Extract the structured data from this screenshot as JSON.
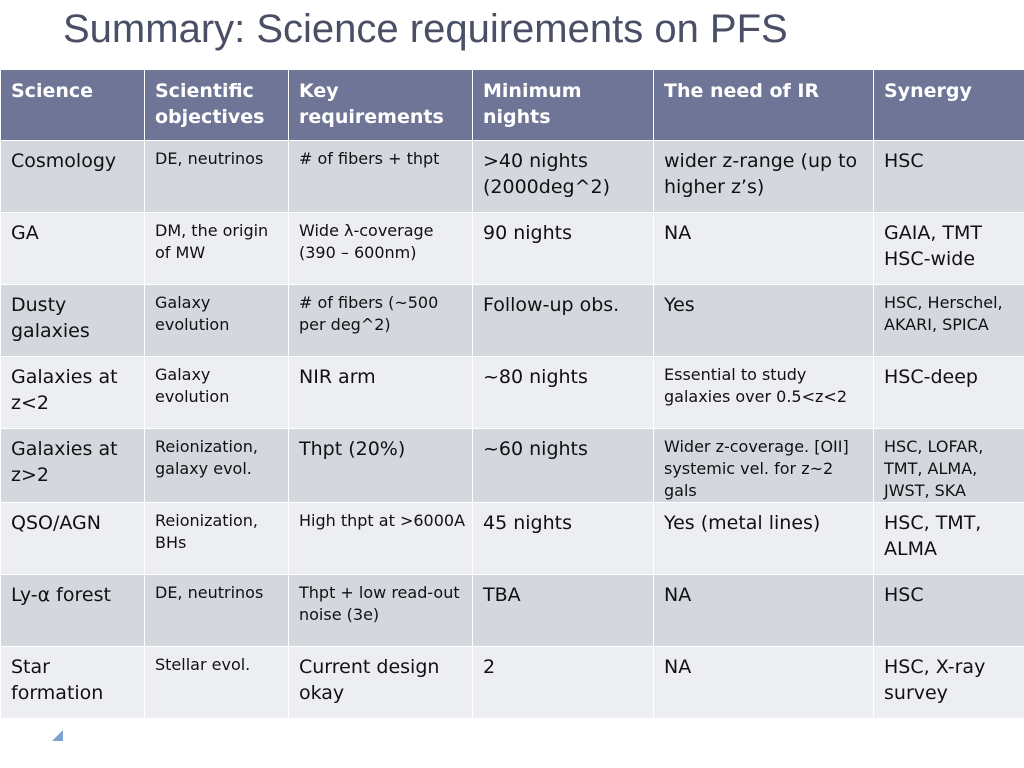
{
  "title": "Summary: Science requirements on PFS",
  "table": {
    "headers": [
      "Science",
      "Scientific objectives",
      "Key requirements",
      "Minimum nights",
      "The need of IR",
      "Synergy"
    ],
    "rows": [
      [
        "Cosmology",
        "DE, neutrinos",
        "# of fibers + thpt",
        ">40 nights (2000deg^2)",
        "wider z-range (up to higher z’s)",
        "HSC"
      ],
      [
        "GA",
        "DM, the origin of MW",
        "Wide λ-coverage (390 – 600nm)",
        "90 nights",
        "NA",
        "GAIA, TMT HSC-wide"
      ],
      [
        "Dusty galaxies",
        "Galaxy evolution",
        "# of fibers (~500 per deg^2)",
        "Follow-up obs.",
        "Yes",
        "HSC, Herschel, AKARI, SPICA"
      ],
      [
        "Galaxies at z<2",
        "Galaxy evolution",
        "NIR arm",
        "~80 nights",
        "Essential to study galaxies over 0.5<z<2",
        "HSC-deep"
      ],
      [
        "Galaxies at z>2",
        "Reionization, galaxy evol.",
        "Thpt (20%)",
        "~60 nights",
        "Wider z-coverage. [OII] systemic vel. for z~2 gals",
        "HSC, LOFAR, TMT, ALMA, JWST, SKA"
      ],
      [
        "QSO/AGN",
        "Reionization, BHs",
        "High thpt at >6000A",
        "45 nights",
        "Yes (metal lines)",
        "HSC, TMT, ALMA"
      ],
      [
        "Ly-α forest",
        "DE, neutrinos",
        "Thpt + low read-out noise (3e)",
        "TBA",
        "NA",
        "HSC"
      ],
      [
        "Star formation",
        "Stellar evol.",
        "Current design okay",
        "2",
        "NA",
        "HSC, X-ray survey"
      ]
    ]
  },
  "colors": {
    "header_bg": "#6e7597",
    "row_dark": "#d5d7df",
    "row_light": "#eceef2",
    "title": "#4a4f66"
  },
  "icons": {
    "corner": "corner-triangle-icon"
  }
}
